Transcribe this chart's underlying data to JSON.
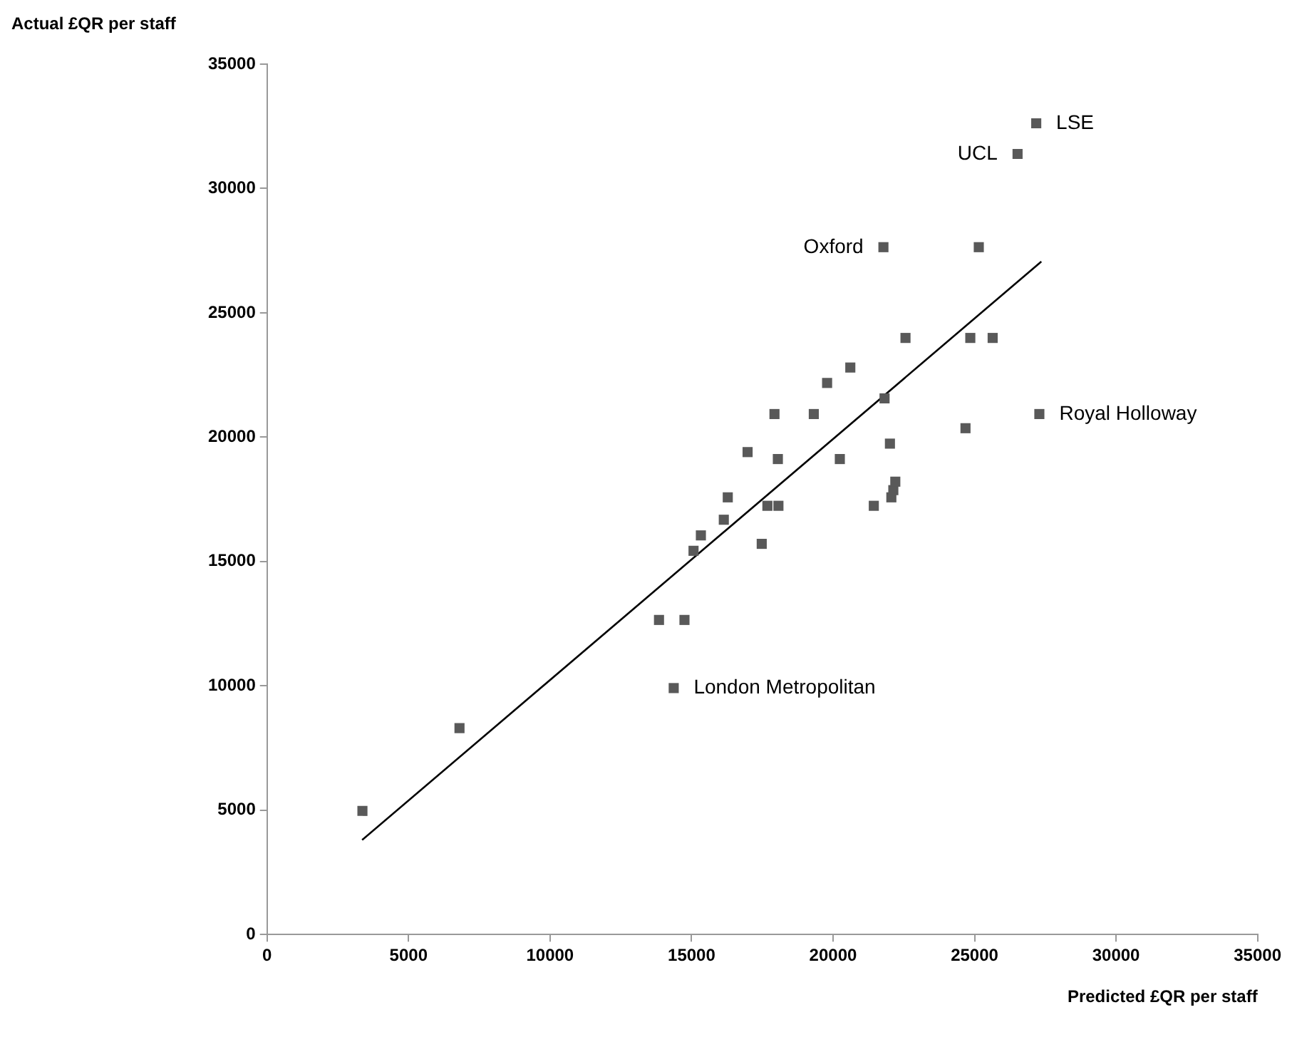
{
  "chart_data": {
    "type": "scatter",
    "xlabel": "Predicted £QR per staff",
    "ylabel": "Actual £QR per staff",
    "xlim": [
      0,
      35000
    ],
    "ylim": [
      0,
      35000
    ],
    "xticks": [
      0,
      5000,
      10000,
      15000,
      20000,
      25000,
      30000,
      35000
    ],
    "yticks": [
      0,
      5000,
      10000,
      15000,
      20000,
      25000,
      30000,
      35000
    ],
    "grid": false,
    "legend": false,
    "series": [
      {
        "type": "scatter",
        "marker": "square",
        "color": "#595959",
        "x": [
          3370,
          6800,
          13850,
          14750,
          14370,
          15070,
          15330,
          16140,
          16280,
          17480,
          17680,
          18070,
          16980,
          18050,
          17930,
          19320,
          19790,
          20610,
          20240,
          21440,
          22060,
          22130,
          22200,
          22010,
          21820,
          22560,
          24680,
          24850,
          25640,
          27290,
          21780,
          25150,
          26520,
          27180
        ],
        "values": [
          4970,
          8300,
          12650,
          12650,
          9910,
          15430,
          16050,
          16680,
          17580,
          15710,
          17240,
          17240,
          19400,
          19120,
          20930,
          20930,
          22180,
          22800,
          19120,
          17240,
          17580,
          17870,
          18210,
          19740,
          21560,
          23990,
          20360,
          23990,
          23990,
          20930,
          27640,
          27640,
          31390,
          32620
        ]
      },
      {
        "type": "line",
        "marker": "none",
        "color": "#000000",
        "x": [
          3360,
          27360
        ],
        "values": [
          3800,
          27060
        ]
      }
    ],
    "annotations": [
      {
        "text": "LSE",
        "x": 27180,
        "y": 32620
      },
      {
        "text": "UCL",
        "x": 26520,
        "y": 31390
      },
      {
        "text": "Oxford",
        "x": 21780,
        "y": 27640
      },
      {
        "text": "Royal Holloway",
        "x": 27290,
        "y": 20930
      },
      {
        "text": "London Metropolitan",
        "x": 14370,
        "y": 9910
      }
    ]
  }
}
